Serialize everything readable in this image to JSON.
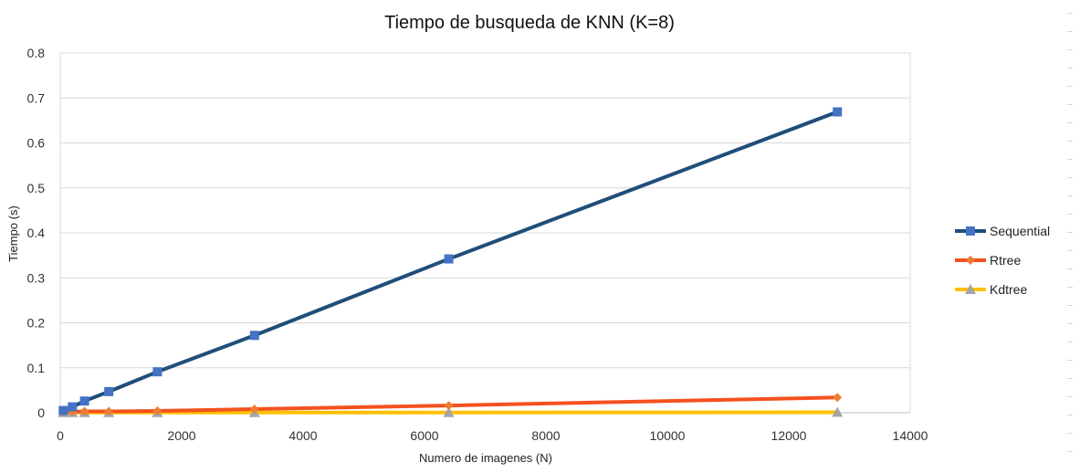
{
  "chart_data": {
    "type": "line",
    "title": "Tiempo de busqueda de KNN (K=8)",
    "xlabel": "Numero de imagenes (N)",
    "ylabel": "Tiempo (s)",
    "xlim": [
      0,
      14000
    ],
    "ylim": [
      0,
      0.8
    ],
    "xticks": [
      "0",
      "2000",
      "4000",
      "6000",
      "8000",
      "10000",
      "12000",
      "14000"
    ],
    "yticks": [
      "0",
      "0.1",
      "0.2",
      "0.3",
      "0.4",
      "0.5",
      "0.6",
      "0.7",
      "0.8"
    ],
    "grid": "horizontal",
    "legend_position": "right",
    "x": [
      50,
      200,
      400,
      800,
      1600,
      3200,
      6400,
      12800
    ],
    "series": [
      {
        "name": "Sequential",
        "values": [
          0.005,
          0.013,
          0.026,
          0.047,
          0.091,
          0.172,
          0.342,
          0.669
        ],
        "line_color": "#1f4e79",
        "marker_color": "#4472c4",
        "marker": "square"
      },
      {
        "name": "Rtree",
        "values": [
          0.002,
          0.002,
          0.003,
          0.003,
          0.004,
          0.008,
          0.016,
          0.034
        ],
        "line_color": "#f4511e",
        "marker_color": "#ed7d31",
        "marker": "diamond"
      },
      {
        "name": "Kdtree",
        "values": [
          0.0005,
          0.0005,
          0.0005,
          0.0005,
          0.0005,
          0.0005,
          0.0005,
          0.001
        ],
        "line_color": "#ffc000",
        "marker_color": "#a5a5a5",
        "marker": "triangle"
      }
    ]
  }
}
